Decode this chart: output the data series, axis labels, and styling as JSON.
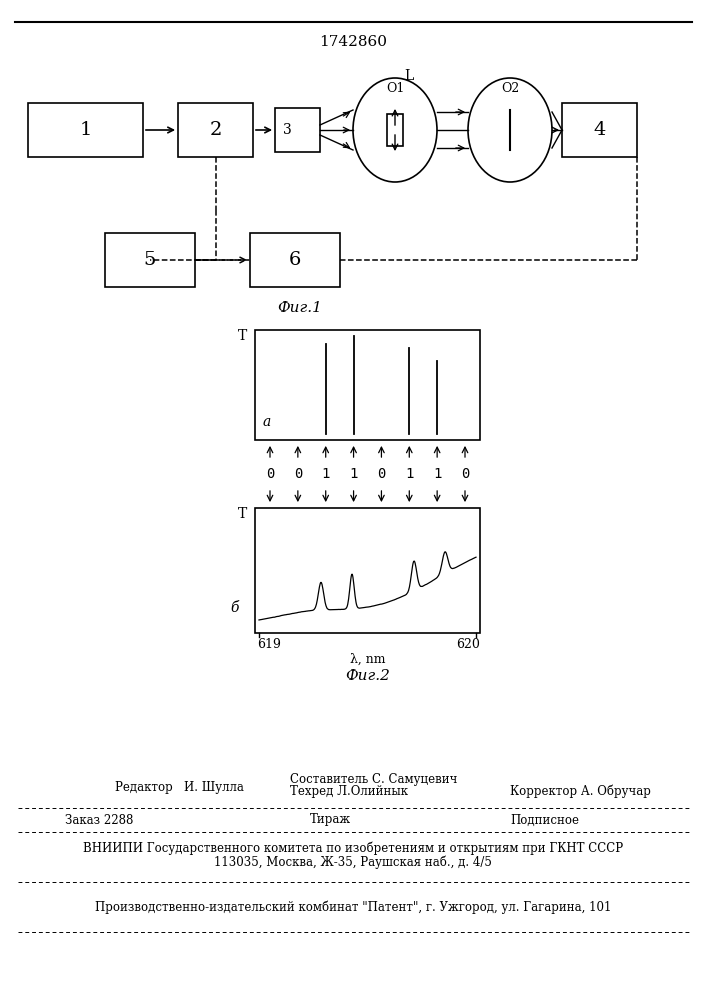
{
  "title": "1742860",
  "fig1_caption": "Фиг.1",
  "fig2_caption": "Фиг.2",
  "binary_label": "00110110",
  "xlabel": "λ, nm",
  "x619": "619",
  "x620": "620",
  "label_a": "a",
  "label_b": "б",
  "ylabel": "T",
  "editor_line1": "Редактор   И. Шулла",
  "sostavitel": "Составитель С. Самуцевич",
  "tekhred": "Техред Л.Олийнык",
  "korrektor": "Корректор А. Обручар",
  "zakaz": "Заказ 2288",
  "tirazh": "Тираж",
  "podpisnoe": "Подписное",
  "vniip1": "ВНИИПИ Государственного комитета по изобретениям и открытиям при ГКНТ СССР",
  "vniip2": "113035, Москва, Ж-35, Раушская наб., д. 4/5",
  "proizv": "Производственно-издательский комбинат \"Патент\", г. Ужгород, ул. Гагарина, 101"
}
